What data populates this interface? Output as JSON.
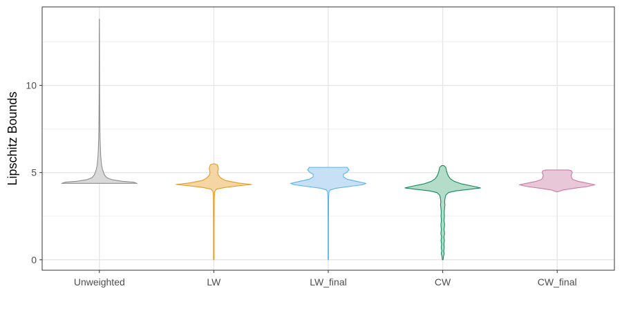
{
  "chart_data": {
    "type": "violin",
    "title": "",
    "xlabel": "",
    "ylabel": "Lipschitz Bounds",
    "ylim": [
      -0.6,
      14.5
    ],
    "grid": true,
    "y_ticks": [
      0,
      5,
      10
    ],
    "y_tick_labels": [
      "0",
      "5",
      "10"
    ],
    "categories": [
      "Unweighted",
      "LW",
      "LW_final",
      "CW",
      "CW_final"
    ],
    "series": [
      {
        "name": "Unweighted",
        "fill": "#d9d9d9",
        "stroke": "#8c8c8c",
        "min": 4.38,
        "max": 13.8,
        "profile": [
          [
            4.38,
            1.0
          ],
          [
            4.45,
            0.9
          ],
          [
            4.5,
            0.6
          ],
          [
            4.6,
            0.32
          ],
          [
            4.7,
            0.2
          ],
          [
            4.85,
            0.14
          ],
          [
            5.0,
            0.11
          ],
          [
            5.2,
            0.08
          ],
          [
            5.4,
            0.06
          ],
          [
            5.7,
            0.045
          ],
          [
            6.0,
            0.035
          ],
          [
            6.5,
            0.025
          ],
          [
            7.0,
            0.018
          ],
          [
            7.5,
            0.014
          ],
          [
            8.0,
            0.011
          ],
          [
            9.0,
            0.008
          ],
          [
            10.0,
            0.006
          ],
          [
            11.0,
            0.005
          ],
          [
            12.0,
            0.004
          ],
          [
            13.0,
            0.003
          ],
          [
            13.8,
            0.001
          ]
        ]
      },
      {
        "name": "LW",
        "fill": "#f5d5a3",
        "stroke": "#e39b1e",
        "min": 0.0,
        "max": 5.5,
        "profile": [
          [
            0.0,
            0.008
          ],
          [
            1.0,
            0.008
          ],
          [
            2.0,
            0.008
          ],
          [
            3.0,
            0.01
          ],
          [
            3.5,
            0.012
          ],
          [
            3.9,
            0.02
          ],
          [
            4.05,
            0.07
          ],
          [
            4.15,
            0.3
          ],
          [
            4.25,
            0.7
          ],
          [
            4.32,
            1.0
          ],
          [
            4.4,
            0.65
          ],
          [
            4.55,
            0.3
          ],
          [
            4.7,
            0.18
          ],
          [
            4.85,
            0.12
          ],
          [
            5.0,
            0.1
          ],
          [
            5.2,
            0.12
          ],
          [
            5.35,
            0.11
          ],
          [
            5.45,
            0.09
          ],
          [
            5.5,
            0.02
          ]
        ]
      },
      {
        "name": "LW_final",
        "fill": "#c8e0f5",
        "stroke": "#56b4e9",
        "min": 0.0,
        "max": 5.3,
        "profile": [
          [
            0.0,
            0.006
          ],
          [
            1.0,
            0.006
          ],
          [
            2.0,
            0.006
          ],
          [
            3.0,
            0.008
          ],
          [
            3.6,
            0.01
          ],
          [
            3.9,
            0.02
          ],
          [
            4.0,
            0.05
          ],
          [
            4.1,
            0.2
          ],
          [
            4.2,
            0.55
          ],
          [
            4.3,
            0.9
          ],
          [
            4.38,
            1.0
          ],
          [
            4.5,
            0.75
          ],
          [
            4.62,
            0.5
          ],
          [
            4.75,
            0.4
          ],
          [
            4.9,
            0.4
          ],
          [
            5.0,
            0.48
          ],
          [
            5.15,
            0.55
          ],
          [
            5.3,
            0.5
          ]
        ]
      },
      {
        "name": "CW",
        "fill": "#b3dcc9",
        "stroke": "#16865f",
        "min": 0.0,
        "max": 5.4,
        "profile": [
          [
            0.0,
            0.01
          ],
          [
            0.2,
            0.02
          ],
          [
            0.35,
            0.04
          ],
          [
            0.5,
            0.025
          ],
          [
            0.7,
            0.04
          ],
          [
            0.9,
            0.03
          ],
          [
            1.1,
            0.045
          ],
          [
            1.3,
            0.03
          ],
          [
            1.5,
            0.05
          ],
          [
            1.75,
            0.035
          ],
          [
            2.0,
            0.05
          ],
          [
            2.25,
            0.035
          ],
          [
            2.5,
            0.045
          ],
          [
            2.75,
            0.04
          ],
          [
            3.0,
            0.05
          ],
          [
            3.15,
            0.06
          ],
          [
            3.3,
            0.05
          ],
          [
            3.5,
            0.06
          ],
          [
            3.7,
            0.08
          ],
          [
            3.85,
            0.15
          ],
          [
            3.95,
            0.35
          ],
          [
            4.05,
            0.75
          ],
          [
            4.12,
            1.0
          ],
          [
            4.22,
            0.8
          ],
          [
            4.35,
            0.5
          ],
          [
            4.5,
            0.3
          ],
          [
            4.65,
            0.2
          ],
          [
            4.8,
            0.15
          ],
          [
            4.95,
            0.12
          ],
          [
            5.1,
            0.1
          ],
          [
            5.3,
            0.08
          ],
          [
            5.4,
            0.03
          ]
        ]
      },
      {
        "name": "CW_final",
        "fill": "#e8c7d8",
        "stroke": "#cc79a7",
        "min": 3.9,
        "max": 5.15,
        "profile": [
          [
            3.9,
            0.02
          ],
          [
            4.0,
            0.15
          ],
          [
            4.1,
            0.45
          ],
          [
            4.2,
            0.8
          ],
          [
            4.3,
            1.0
          ],
          [
            4.4,
            0.78
          ],
          [
            4.5,
            0.55
          ],
          [
            4.6,
            0.42
          ],
          [
            4.7,
            0.38
          ],
          [
            4.85,
            0.37
          ],
          [
            5.0,
            0.4
          ],
          [
            5.1,
            0.38
          ],
          [
            5.15,
            0.3
          ]
        ]
      }
    ]
  }
}
